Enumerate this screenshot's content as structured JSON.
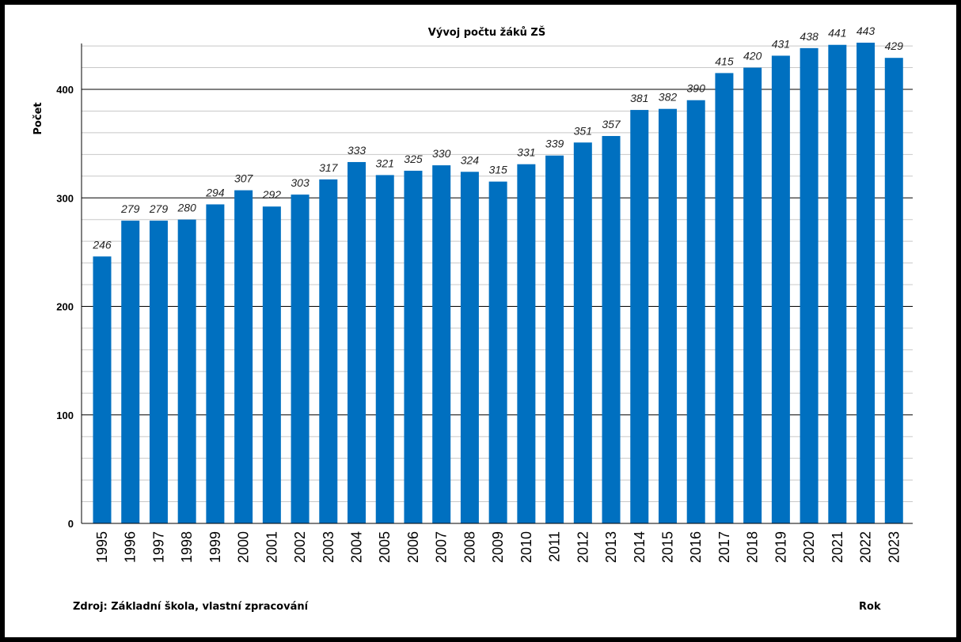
{
  "chart_data": {
    "type": "bar",
    "title": "Vývoj počtu žáků ZŠ",
    "xlabel": "Rok",
    "ylabel": "Počet",
    "source_note": "Zdroj: Základní škola, vlastní zpracování",
    "categories": [
      "1995",
      "1996",
      "1997",
      "1998",
      "1999",
      "2000",
      "2001",
      "2002",
      "2003",
      "2004",
      "2005",
      "2006",
      "2007",
      "2008",
      "2009",
      "2010",
      "2011",
      "2012",
      "2013",
      "2014",
      "2015",
      "2016",
      "2017",
      "2018",
      "2019",
      "2020",
      "2021",
      "2022",
      "2023"
    ],
    "values": [
      246,
      279,
      279,
      280,
      294,
      307,
      292,
      303,
      317,
      333,
      321,
      325,
      330,
      324,
      315,
      331,
      339,
      351,
      357,
      381,
      382,
      390,
      415,
      420,
      431,
      438,
      441,
      443,
      429
    ],
    "y_ticks": [
      "0",
      "100",
      "200",
      "300",
      "400"
    ],
    "ylim": [
      0,
      440
    ],
    "bar_color": "#0070c0",
    "grid": true,
    "legend": "none"
  }
}
